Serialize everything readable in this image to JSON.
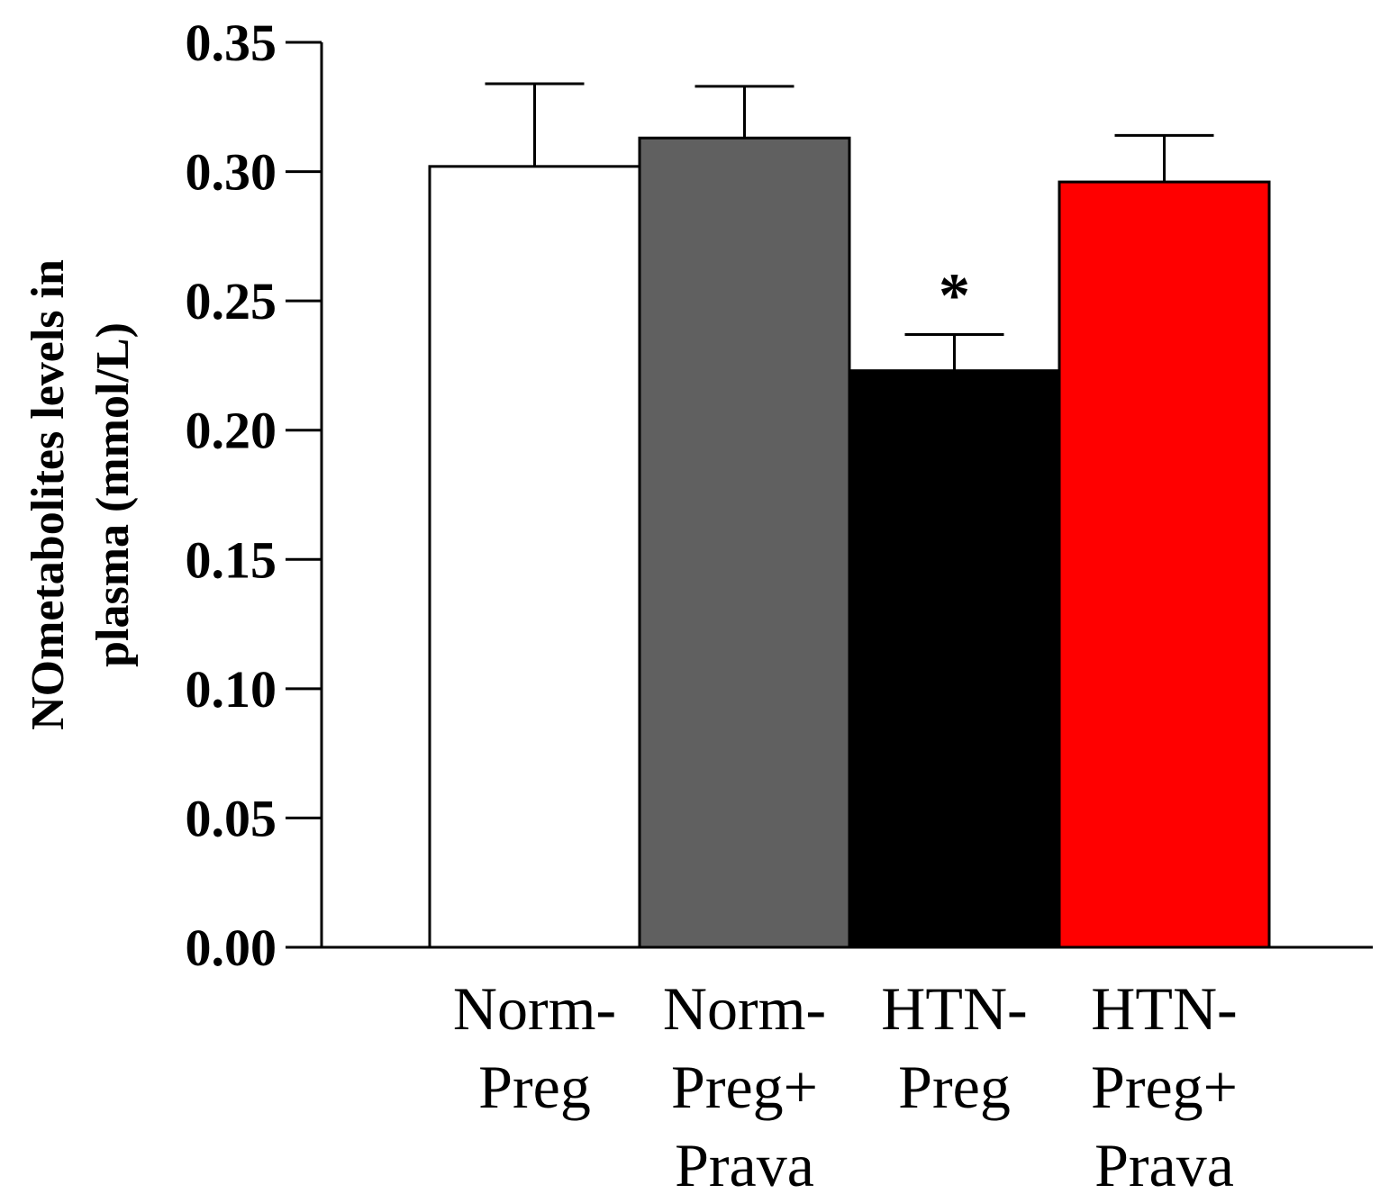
{
  "chart_data": {
    "type": "bar",
    "title": "",
    "xlabel": "",
    "ylabel_lines": [
      "NOmetabolites levels in",
      "plasma (mmol/L)"
    ],
    "ylim": [
      0,
      0.35
    ],
    "yticks": [
      "0.00",
      "0.05",
      "0.10",
      "0.15",
      "0.20",
      "0.25",
      "0.30",
      "0.35"
    ],
    "categories": [
      [
        "Norm-",
        "Preg"
      ],
      [
        "Norm-",
        "Preg+",
        "Prava"
      ],
      [
        "HTN-",
        "Preg"
      ],
      [
        "HTN-",
        "Preg+",
        "Prava"
      ]
    ],
    "values": [
      0.302,
      0.313,
      0.223,
      0.296
    ],
    "errors": [
      0.032,
      0.02,
      0.014,
      0.018
    ],
    "colors": [
      "#ffffff",
      "#606060",
      "#000000",
      "#ff0000"
    ],
    "significance": [
      "",
      "",
      "*",
      ""
    ]
  }
}
